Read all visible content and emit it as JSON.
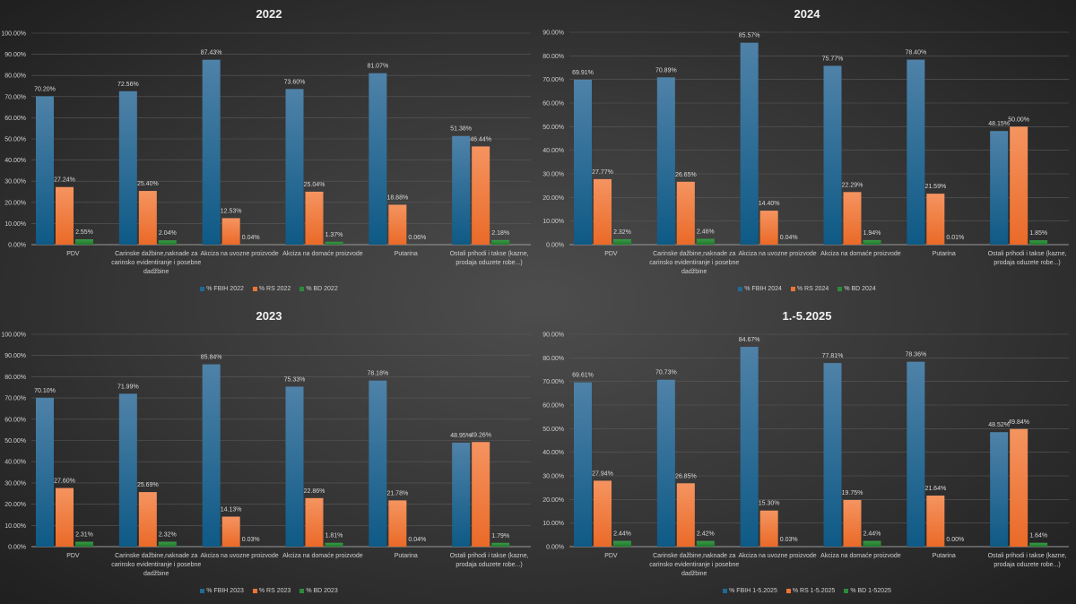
{
  "colors": {
    "fbih": "#1f6a96",
    "rs": "#ee7434",
    "bd": "#2c8a3a",
    "grid": "#5a5a5a",
    "background": "#3a3a3a"
  },
  "chart_data": [
    {
      "type": "bar",
      "title": "2022",
      "ylim": [
        0,
        100
      ],
      "yticks": [
        "0.00%",
        "10.00%",
        "20.00%",
        "30.00%",
        "40.00%",
        "50.00%",
        "60.00%",
        "70.00%",
        "80.00%",
        "90.00%",
        "100.00%"
      ],
      "grid": true,
      "legend": "bottom",
      "categories": [
        "PDV",
        "Carinske dažbine,naknade za carinsko evidentiranje i posebne dadžbine",
        "Akciza na uvozne proizvode",
        "Akciza na domaće proizvode",
        "Putarina",
        "Ostali prihodi i takse (kazne, prodaja oduzete robe...)"
      ],
      "series": [
        {
          "name": "% FBIH 2022",
          "values": [
            70.2,
            72.56,
            87.43,
            73.6,
            81.07,
            51.38
          ],
          "labels": [
            "70.20%",
            "72.56%",
            "87.43%",
            "73.60%",
            "81.07%",
            "51.38%"
          ]
        },
        {
          "name": "% RS 2022",
          "values": [
            27.24,
            25.4,
            12.53,
            25.04,
            18.88,
            46.44
          ],
          "labels": [
            "27.24%",
            "25.40%",
            "12.53%",
            "25.04%",
            "18.88%",
            "46.44%"
          ]
        },
        {
          "name": "% BD 2022",
          "values": [
            2.55,
            2.04,
            0.04,
            1.37,
            0.06,
            2.18
          ],
          "labels": [
            "2.55%",
            "2.04%",
            "0.04%",
            "1.37%",
            "0.06%",
            "2.18%"
          ]
        }
      ]
    },
    {
      "type": "bar",
      "title": "2024",
      "ylim": [
        0,
        90
      ],
      "yticks": [
        "0.00%",
        "10.00%",
        "20.00%",
        "30.00%",
        "40.00%",
        "50.00%",
        "60.00%",
        "70.00%",
        "80.00%",
        "90.00%"
      ],
      "grid": true,
      "legend": "bottom",
      "categories": [
        "PDV",
        "Carinske dažbine,naknade za carinsko evidentiranje i posebne dadžbine",
        "Akciza na uvozne proizvode",
        "Akciza na domaće proizvode",
        "Putarina",
        "Ostali prihodi i takse (kazne, prodaja oduzete robe...)"
      ],
      "series": [
        {
          "name": "% FBIH 2024",
          "values": [
            69.91,
            70.89,
            85.57,
            75.77,
            78.4,
            48.15
          ],
          "labels": [
            "69.91%",
            "70.89%",
            "85.57%",
            "75.77%",
            "78.40%",
            "48.15%"
          ]
        },
        {
          "name": "% RS 2024",
          "values": [
            27.77,
            26.65,
            14.4,
            22.29,
            21.59,
            50.0
          ],
          "labels": [
            "27.77%",
            "26.65%",
            "14.40%",
            "22.29%",
            "21.59%",
            "50.00%"
          ]
        },
        {
          "name": "% BD 2024",
          "values": [
            2.32,
            2.46,
            0.04,
            1.94,
            0.01,
            1.85
          ],
          "labels": [
            "2.32%",
            "2.46%",
            "0.04%",
            "1.94%",
            "0.01%",
            "1.85%"
          ]
        }
      ]
    },
    {
      "type": "bar",
      "title": "2023",
      "ylim": [
        0,
        100
      ],
      "yticks": [
        "0.00%",
        "10.00%",
        "20.00%",
        "30.00%",
        "40.00%",
        "50.00%",
        "60.00%",
        "70.00%",
        "80.00%",
        "90.00%",
        "100.00%"
      ],
      "grid": true,
      "legend": "bottom",
      "categories": [
        "PDV",
        "Carinske dažbine,naknade za carinsko evidentiranje i posebne dadžbine",
        "Akciza na uvozne proizvode",
        "Akciza na domaće proizvode",
        "Putarina",
        "Ostali prihodi i takse (kazne, prodaja oduzete robe...)"
      ],
      "series": [
        {
          "name": "% FBIH 2023",
          "values": [
            70.1,
            71.99,
            85.84,
            75.33,
            78.18,
            48.95
          ],
          "labels": [
            "70.10%",
            "71.99%",
            "85.84%",
            "75.33%",
            "78.18%",
            "48.95%"
          ]
        },
        {
          "name": "% RS 2023",
          "values": [
            27.6,
            25.69,
            14.13,
            22.86,
            21.78,
            49.26
          ],
          "labels": [
            "27.60%",
            "25.69%",
            "14.13%",
            "22.86%",
            "21.78%",
            "49.26%"
          ]
        },
        {
          "name": "% BD 2023",
          "values": [
            2.31,
            2.32,
            0.03,
            1.81,
            0.04,
            1.79
          ],
          "labels": [
            "2.31%",
            "2.32%",
            "0.03%",
            "1.81%",
            "0.04%",
            "1.79%"
          ]
        }
      ]
    },
    {
      "type": "bar",
      "title": "1.-5.2025",
      "ylim": [
        0,
        90
      ],
      "yticks": [
        "0.00%",
        "10.00%",
        "20.00%",
        "30.00%",
        "40.00%",
        "50.00%",
        "60.00%",
        "70.00%",
        "80.00%",
        "90.00%"
      ],
      "grid": true,
      "legend": "bottom",
      "categories": [
        "PDV",
        "Carinske dažbine,naknade za carinsko evidentiranje i posebne dadžbine",
        "Akciza na uvozne proizvode",
        "Akciza na domaće proizvode",
        "Putarina",
        "Ostali prihodi i takse (kazne, prodaja oduzete robe...)"
      ],
      "series": [
        {
          "name": "% FBIH 1-5.2025",
          "values": [
            69.61,
            70.73,
            84.67,
            77.81,
            78.36,
            48.52
          ],
          "labels": [
            "69.61%",
            "70.73%",
            "84.67%",
            "77.81%",
            "78.36%",
            "48.52%"
          ]
        },
        {
          "name": "% RS 1-5.2025",
          "values": [
            27.94,
            26.85,
            15.3,
            19.75,
            21.64,
            49.84
          ],
          "labels": [
            "27.94%",
            "26.85%",
            "15.30%",
            "19.75%",
            "21.64%",
            "49.84%"
          ]
        },
        {
          "name": "% BD 1-52025",
          "values": [
            2.44,
            2.42,
            0.03,
            2.44,
            0.0,
            1.64
          ],
          "labels": [
            "2.44%",
            "2.42%",
            "0.03%",
            "2.44%",
            "0.00%",
            "1.64%"
          ]
        }
      ]
    }
  ]
}
